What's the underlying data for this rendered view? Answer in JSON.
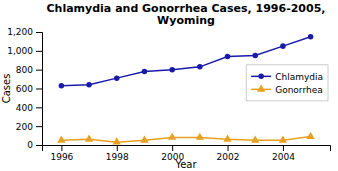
{
  "chart_data": {
    "type": "line",
    "title": "Chlamydia and Gonorrhea Cases, 1996-2005,\nWyoming",
    "xlabel": "Year",
    "ylabel": "Cases",
    "x": [
      1996,
      1997,
      1998,
      1999,
      2000,
      2001,
      2002,
      2003,
      2004,
      2005
    ],
    "series": [
      {
        "name": "Chlamydia",
        "color": "#1a1aaa",
        "marker": "circle",
        "values": [
          630,
          640,
          710,
          780,
          800,
          830,
          940,
          950,
          1050,
          1150
        ]
      },
      {
        "name": "Gonorrhea",
        "color": "#e8a020",
        "marker": "triangle",
        "values": [
          50,
          60,
          30,
          50,
          80,
          80,
          60,
          50,
          50,
          90
        ]
      }
    ],
    "xlim": [
      1995.3,
      2005.7
    ],
    "xticks": [
      1996,
      1998,
      2000,
      2002,
      2004
    ],
    "ylim": [
      0,
      1200
    ],
    "yticks": [
      0,
      200,
      400,
      600,
      800,
      {
        "value": 1000,
        "label": "1,000"
      },
      {
        "value": 1200,
        "label": "1,200"
      }
    ],
    "grid": false,
    "legend": "right"
  }
}
